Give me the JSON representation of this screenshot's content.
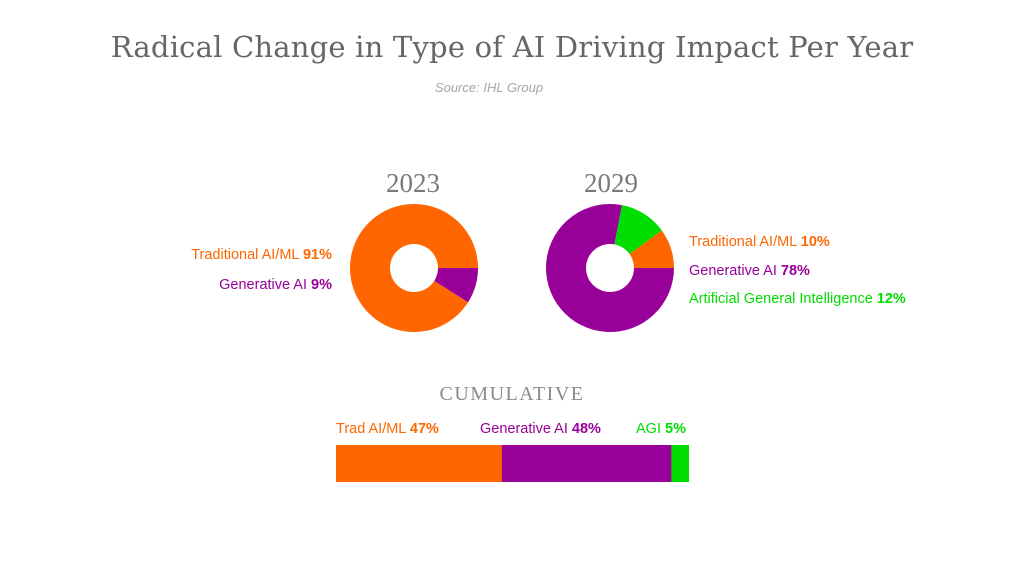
{
  "title": "Radical Change in Type of AI Driving Impact Per Year",
  "subtitle": "Source: IHL Group",
  "colors": {
    "traditional": "#ff6600",
    "generative": "#990099",
    "agi": "#00dd00"
  },
  "chart_data": [
    {
      "type": "pie",
      "variant": "donut",
      "title": "2023",
      "slices": [
        {
          "label": "Traditional AI/ML",
          "value": 91,
          "value_label": "91%",
          "color": "#ff6600"
        },
        {
          "label": "Generative AI",
          "value": 9,
          "value_label": "9%",
          "color": "#990099"
        }
      ]
    },
    {
      "type": "pie",
      "variant": "donut",
      "title": "2029",
      "slices": [
        {
          "label": "Traditional AI/ML",
          "value": 10,
          "value_label": "10%",
          "color": "#ff6600"
        },
        {
          "label": "Generative AI",
          "value": 78,
          "value_label": "78%",
          "color": "#990099"
        },
        {
          "label": "Artificial General Intelligence",
          "value": 12,
          "value_label": "12%",
          "color": "#00dd00"
        }
      ]
    },
    {
      "type": "bar",
      "variant": "stacked-horizontal",
      "title": "CUMULATIVE",
      "segments": [
        {
          "label": "Trad AI/ML",
          "value": 47,
          "value_label": "47%",
          "color": "#ff6600"
        },
        {
          "label": "Generative AI",
          "value": 48,
          "value_label": "48%",
          "color": "#990099"
        },
        {
          "label": "AGI",
          "value": 5,
          "value_label": "5%",
          "color": "#00dd00"
        }
      ]
    }
  ]
}
